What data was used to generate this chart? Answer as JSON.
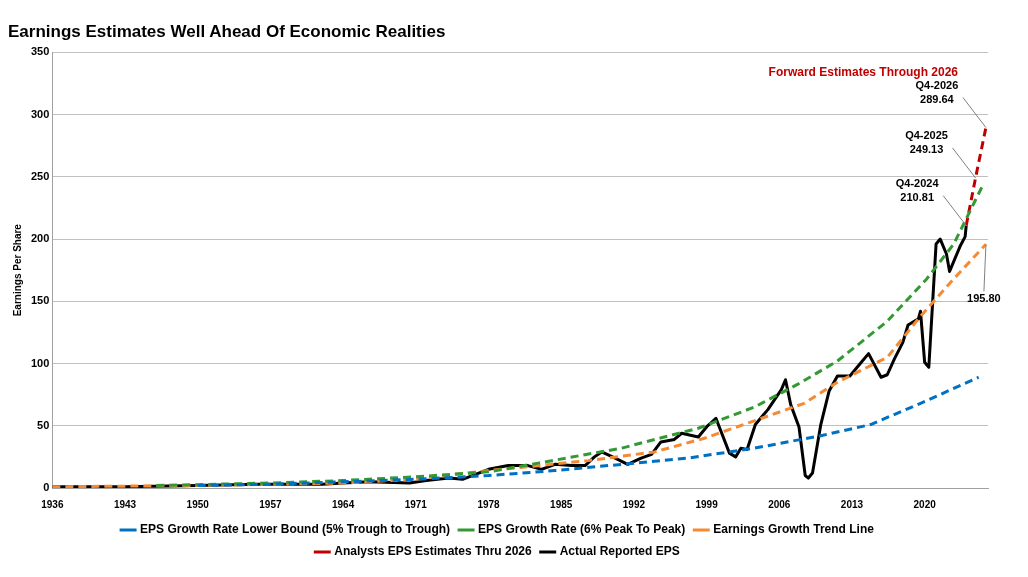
{
  "chart_data": {
    "type": "line",
    "title": "Earnings Estimates Well Ahead Of Economic Realities",
    "ylabel": "Earnings Per Share",
    "xlim": [
      1936,
      2026.1
    ],
    "xticks": [
      1936,
      1943,
      1950,
      1957,
      1964,
      1971,
      1978,
      1985,
      1992,
      1999,
      2006,
      2013,
      2020
    ],
    "ylim": [
      0,
      350
    ],
    "yticks": [
      0,
      50,
      100,
      150,
      200,
      250,
      300,
      350
    ],
    "grid": "y",
    "legend": "bottom",
    "marker": "none",
    "annotations": [
      "Forward Estimates Through 2026",
      {
        "text": "Q4-2024 210.81",
        "x": 2024.0,
        "y": 210.81
      },
      {
        "text": "Q4-2025 249.13",
        "x": 2024.9,
        "y": 249.13
      },
      {
        "text": "Q4-2026 289.64",
        "x": 2025.9,
        "y": 289.64
      },
      {
        "text": "195.80",
        "x": 2025.9,
        "y": 195.8
      }
    ],
    "series": [
      {
        "name": "EPS Growth Rate Lower Bound (5% Trough to Trough)",
        "color": "#0070c0",
        "line_style": "dashed",
        "x": [
          1950,
          1957,
          1964,
          1971,
          1978,
          1984.4,
          1990.8,
          1997.2,
          2003.6,
          2010,
          2014.8,
          2019.6,
          2025.2
        ],
        "values": [
          2,
          3,
          5,
          7,
          10,
          14,
          19,
          24,
          32,
          42,
          51,
          68,
          89
        ]
      },
      {
        "name": "EPS Growth Rate (6% Peak To Peak)",
        "color": "#339933",
        "line_style": "dashed",
        "x": [
          1946,
          1957,
          1964,
          1971,
          1978,
          1982.8,
          1990.8,
          1998.2,
          2003.6,
          2007.7,
          2011.6,
          2016.4,
          2020.2,
          2022.8,
          2025.7
        ],
        "values": [
          2,
          4,
          6,
          9,
          13,
          20,
          32,
          48,
          65,
          83,
          102,
          134,
          168,
          196,
          245
        ]
      },
      {
        "name": "Earnings Growth Trend Line",
        "color": "#f58a33",
        "line_style": "dashed",
        "x": [
          1936,
          1950,
          1964,
          1971,
          1978,
          1987.6,
          1994,
          1998.8,
          2003.6,
          2008.4,
          2011.6,
          2016.4,
          2019.6,
          2022.8,
          2025.9
        ],
        "values": [
          1,
          2,
          4,
          7,
          14,
          22,
          29,
          40,
          54,
          68,
          85,
          105,
          138,
          168,
          195.8
        ]
      },
      {
        "name": "Analysts EPS Estimates Thru 2026",
        "color": "#c00000",
        "line_style": "dashed",
        "x": [
          2024.0,
          2024.9,
          2025.9
        ],
        "values": [
          210.81,
          249.13,
          289.64
        ]
      },
      {
        "name": "Actual Reported EPS",
        "color": "#000000",
        "line_style": "solid",
        "x": [
          1936,
          1943,
          1950,
          1955.7,
          1962,
          1964,
          1966.5,
          1970.4,
          1972,
          1974.2,
          1975.5,
          1978,
          1979.9,
          1981.8,
          1983.1,
          1984.4,
          1986,
          1987.3,
          1988.2,
          1988.9,
          1990.2,
          1991.4,
          1992.7,
          1993.7,
          1994.6,
          1995.9,
          1996.6,
          1998.2,
          1999.1,
          1999.9,
          2001.2,
          2001.8,
          2002.3,
          2002.9,
          2003.7,
          2004.9,
          2006.2,
          2006.6,
          2007.1,
          2007.9,
          2008.5,
          2008.8,
          2009.2,
          2010,
          2010.8,
          2011.6,
          2012.8,
          2013.9,
          2014.6,
          2015.8,
          2016.4,
          2017.1,
          2017.9,
          2018.4,
          2019.4,
          2019.6,
          2020,
          2020.4,
          2021.1,
          2021.5,
          2022.1,
          2022.4,
          2023.4,
          2023.9,
          2024.0
        ],
        "values": [
          1,
          1,
          2,
          3,
          3,
          4,
          5,
          4,
          6,
          8,
          7,
          15,
          18,
          18,
          15,
          19,
          18,
          18,
          25,
          29,
          24,
          19,
          24,
          27,
          37,
          39,
          44,
          41,
          50,
          56,
          28,
          25,
          32,
          31,
          51,
          63,
          79,
          87,
          67,
          49,
          10,
          8,
          12,
          51,
          78,
          90,
          90,
          101,
          108,
          89,
          91,
          104,
          117,
          131,
          136,
          142,
          101,
          97,
          196,
          200,
          188,
          174,
          194,
          202,
          210.81
        ]
      }
    ]
  }
}
